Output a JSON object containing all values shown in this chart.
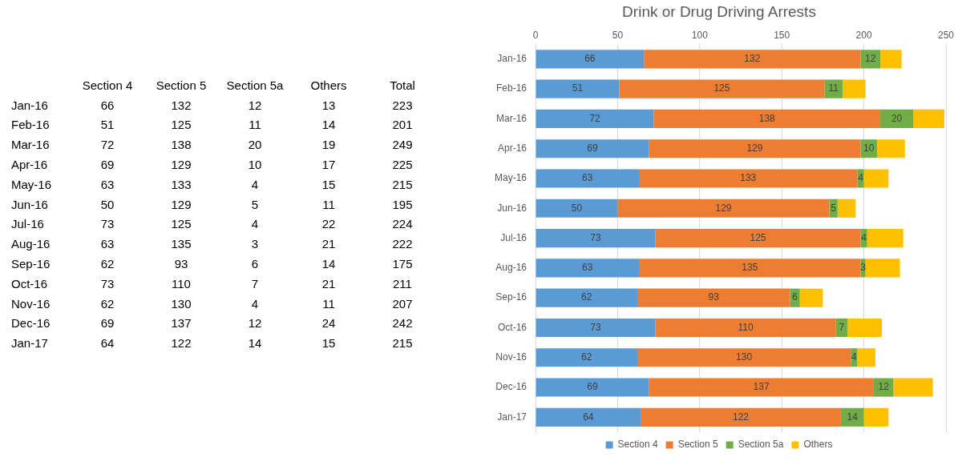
{
  "chart_data": [
    {
      "type": "other",
      "data_labels": true,
      "categories": [
        "Jan-16",
        "Feb-16",
        "Mar-16",
        "Apr-16",
        "May-16",
        "Jun-16",
        "Jul-16",
        "Aug-16",
        "Sep-16",
        "Oct-16",
        "Nov-16",
        "Dec-16",
        "Jan-17"
      ],
      "series": [
        {
          "name": "Section 4",
          "values": [
            66,
            51,
            72,
            69,
            63,
            50,
            73,
            63,
            62,
            73,
            62,
            69,
            64
          ]
        },
        {
          "name": "Section 5",
          "values": [
            132,
            125,
            138,
            129,
            133,
            129,
            125,
            135,
            93,
            110,
            130,
            137,
            122
          ]
        },
        {
          "name": "Section 5a",
          "values": [
            12,
            11,
            20,
            10,
            4,
            5,
            4,
            3,
            6,
            7,
            4,
            12,
            14
          ]
        },
        {
          "name": "Others",
          "values": [
            13,
            14,
            19,
            17,
            15,
            11,
            22,
            21,
            14,
            21,
            11,
            24,
            15
          ]
        },
        {
          "name": "Total",
          "values": [
            223,
            201,
            249,
            225,
            215,
            195,
            224,
            222,
            175,
            211,
            207,
            242,
            215
          ]
        }
      ]
    },
    {
      "type": "bar",
      "orientation": "horizontal",
      "stacked": true,
      "title": "Drink or Drug Driving Arrests",
      "categories": [
        "Jan-16",
        "Feb-16",
        "Mar-16",
        "Apr-16",
        "May-16",
        "Jun-16",
        "Jul-16",
        "Aug-16",
        "Sep-16",
        "Oct-16",
        "Nov-16",
        "Dec-16",
        "Jan-17"
      ],
      "series": [
        {
          "name": "Section 4",
          "color": "#5b9bd5",
          "values": [
            66,
            51,
            72,
            69,
            63,
            50,
            73,
            63,
            62,
            73,
            62,
            69,
            64
          ],
          "value_labels": [
            "66",
            "51",
            "72",
            "69",
            "63",
            "50",
            "73",
            "63",
            "62",
            "73",
            "62",
            "69",
            "64"
          ]
        },
        {
          "name": "Section 5",
          "color": "#ed7d31",
          "values": [
            132,
            125,
            138,
            129,
            133,
            129,
            125,
            135,
            93,
            110,
            130,
            137,
            122
          ],
          "value_labels": [
            "132",
            "125",
            "138",
            "129",
            "133",
            "129",
            "125",
            "135",
            "93",
            "110",
            "130",
            "137",
            "122"
          ]
        },
        {
          "name": "Section 5a",
          "color": "#70ad47",
          "values": [
            12,
            11,
            20,
            10,
            4,
            5,
            4,
            3,
            6,
            7,
            4,
            12,
            14
          ],
          "value_labels": [
            "12",
            "11",
            "20",
            "10",
            "4",
            "5",
            "4",
            "3",
            "6",
            "7",
            "4",
            "12",
            "14"
          ]
        },
        {
          "name": "Others",
          "color": "#ffc000",
          "values": [
            13,
            14,
            19,
            17,
            15,
            11,
            22,
            21,
            14,
            21,
            11,
            24,
            15
          ]
        }
      ],
      "xlim": [
        0,
        250
      ],
      "xticks": [
        0,
        50,
        100,
        150,
        200,
        250
      ],
      "grid": "x",
      "legend": "bottom"
    }
  ]
}
